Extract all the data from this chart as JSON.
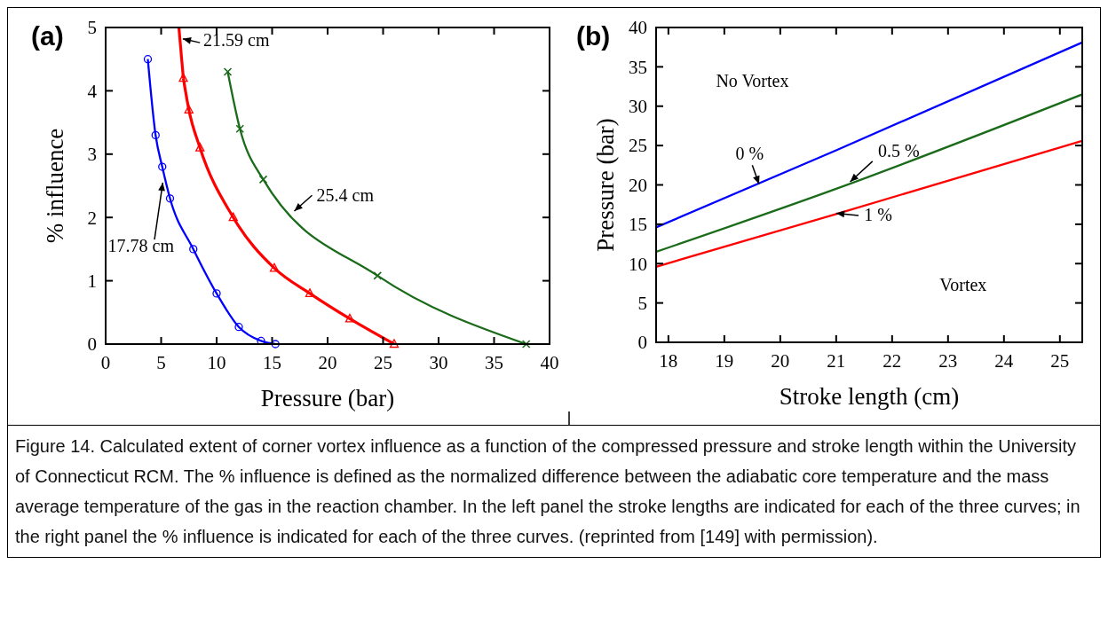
{
  "chart_data": [
    {
      "type": "line",
      "title": "(a)",
      "xlabel": "Pressure (bar)",
      "ylabel": "% influence",
      "xlim": [
        0,
        40
      ],
      "ylim": [
        0,
        5
      ],
      "xticks": [
        0,
        5,
        10,
        15,
        20,
        25,
        30,
        35,
        40
      ],
      "yticks": [
        0,
        1,
        2,
        3,
        4,
        5
      ],
      "grid": false,
      "annotations": [
        "Figure 14. Calculated extent of corner vortex influence as a function of the compressed pressure and stroke length within the University of Connecticut RCM.  The % influence is defined as the normalized difference between the adiabatic core temperature and the mass average temperature of the gas in the reaction chamber.  In the left panel the stroke lengths are indicated for each of the three curves; in the right panel the % influence is indicated for each of the three curves. (reprinted from [149] with permission)."
      ],
      "series": [
        {
          "name": "17.78 cm",
          "color": "#0000ff",
          "marker": "circle",
          "x": [
            3.8,
            4.5,
            5.1,
            5.8,
            7.9,
            10,
            12,
            14,
            15.3
          ],
          "values": [
            4.5,
            3.3,
            2.8,
            2.3,
            1.5,
            0.8,
            0.27,
            0.05,
            0
          ]
        },
        {
          "name": "21.59 cm",
          "color": "#ff0000",
          "marker": "triangle",
          "x": [
            7,
            7.5,
            8.5,
            11.5,
            15.2,
            18.4,
            22,
            26
          ],
          "values": [
            4.2,
            3.7,
            3.1,
            2.0,
            1.2,
            0.8,
            0.4,
            0
          ]
        },
        {
          "color": "#ff0000",
          "marker": "none",
          "x": [
            6.6,
            7
          ],
          "values": [
            5,
            4.2
          ]
        },
        {
          "name": "25.4 cm",
          "color": "#1a6b1a",
          "marker": "cross",
          "x": [
            11,
            12.1,
            14.2,
            24.5,
            37.9
          ],
          "values": [
            4.3,
            3.4,
            2.6,
            1.08,
            0
          ]
        }
      ]
    },
    {
      "type": "line",
      "title": "(b)",
      "xlabel": "Stroke length (cm)",
      "ylabel": "Pressure (bar)",
      "xlim": [
        17.78,
        25.4
      ],
      "ylim": [
        0,
        40
      ],
      "xticks": [
        18,
        19,
        20,
        21,
        22,
        23,
        24,
        25
      ],
      "yticks": [
        0,
        5,
        10,
        15,
        20,
        25,
        30,
        35,
        40
      ],
      "grid": false,
      "marker": "none",
      "annotations": [
        "No Vortex",
        "Vortex"
      ],
      "series": [
        {
          "name": "0 %",
          "color": "#0000ff",
          "x": [
            17.78,
            21,
            25.4
          ],
          "values": [
            14.6,
            24.4,
            38.1
          ]
        },
        {
          "name": "0.5 %",
          "color": "#1a6b1a",
          "x": [
            17.78,
            21,
            25.4
          ],
          "values": [
            11.5,
            19.5,
            31.5
          ]
        },
        {
          "name": "1 %",
          "color": "#ff0000",
          "x": [
            17.78,
            21,
            25.4
          ],
          "values": [
            9.6,
            16.3,
            25.6
          ]
        }
      ]
    }
  ]
}
